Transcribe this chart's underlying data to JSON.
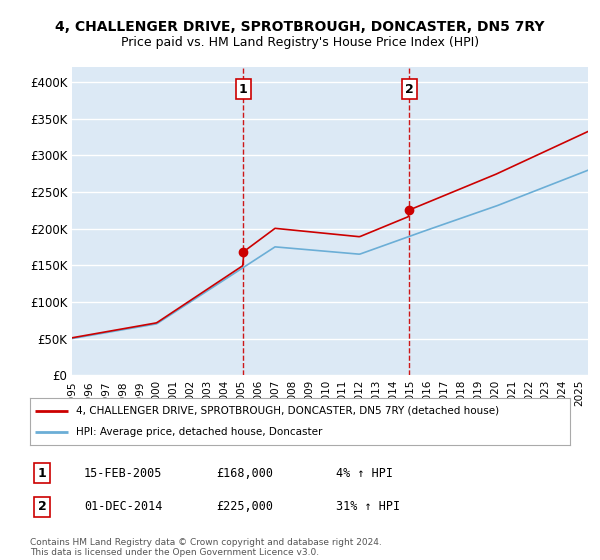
{
  "title_line1": "4, CHALLENGER DRIVE, SPROTBROUGH, DONCASTER, DN5 7RY",
  "title_line2": "Price paid vs. HM Land Registry's House Price Index (HPI)",
  "bg_color": "#dce9f5",
  "grid_color": "#ffffff",
  "ylabel_ticks": [
    "£0",
    "£50K",
    "£100K",
    "£150K",
    "£200K",
    "£250K",
    "£300K",
    "£350K",
    "£400K"
  ],
  "ytick_values": [
    0,
    50000,
    100000,
    150000,
    200000,
    250000,
    300000,
    350000,
    400000
  ],
  "ylim": [
    0,
    420000
  ],
  "xlim_start": 1995.0,
  "xlim_end": 2025.5,
  "hpi_color": "#6baed6",
  "price_color": "#cc0000",
  "sale1_x": 2005.12,
  "sale1_y": 168000,
  "sale2_x": 2014.92,
  "sale2_y": 225000,
  "legend_label1": "4, CHALLENGER DRIVE, SPROTBROUGH, DONCASTER, DN5 7RY (detached house)",
  "legend_label2": "HPI: Average price, detached house, Doncaster",
  "ann1_date": "15-FEB-2005",
  "ann1_price": "£168,000",
  "ann1_hpi": "4% ↑ HPI",
  "ann2_date": "01-DEC-2014",
  "ann2_price": "£225,000",
  "ann2_hpi": "31% ↑ HPI",
  "footer": "Contains HM Land Registry data © Crown copyright and database right 2024.\nThis data is licensed under the Open Government Licence v3.0.",
  "xtick_years": [
    1995,
    1996,
    1997,
    1998,
    1999,
    2000,
    2001,
    2002,
    2003,
    2004,
    2005,
    2006,
    2007,
    2008,
    2009,
    2010,
    2011,
    2012,
    2013,
    2014,
    2015,
    2016,
    2017,
    2018,
    2019,
    2020,
    2021,
    2022,
    2023,
    2024,
    2025
  ]
}
